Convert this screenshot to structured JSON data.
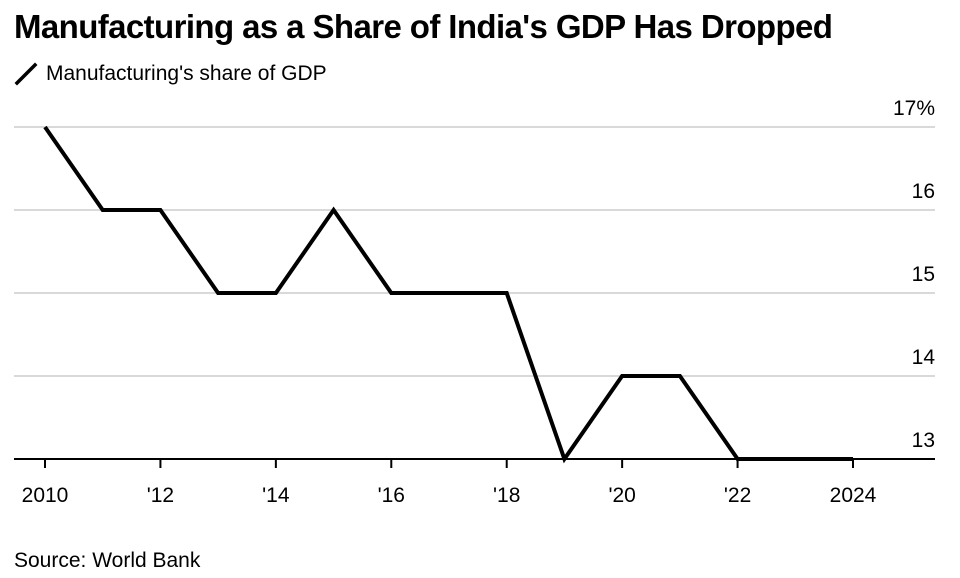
{
  "chart_data": {
    "type": "line",
    "title": "Manufacturing as a Share of India's GDP Has Dropped",
    "x": [
      2010,
      2011,
      2012,
      2013,
      2014,
      2015,
      2016,
      2017,
      2018,
      2019,
      2020,
      2021,
      2022,
      2023,
      2024
    ],
    "series": [
      {
        "name": "Manufacturing's share of GDP",
        "values": [
          17,
          16,
          16,
          15,
          15,
          16,
          15,
          15,
          15,
          13,
          14,
          14,
          13,
          13,
          13
        ],
        "color": "#000000"
      }
    ],
    "x_ticks": [
      {
        "value": 2010,
        "label": "2010"
      },
      {
        "value": 2012,
        "label": "'12"
      },
      {
        "value": 2014,
        "label": "'14"
      },
      {
        "value": 2016,
        "label": "'16"
      },
      {
        "value": 2018,
        "label": "'18"
      },
      {
        "value": 2020,
        "label": "'20"
      },
      {
        "value": 2022,
        "label": "'22"
      },
      {
        "value": 2024,
        "label": "2024"
      }
    ],
    "y_ticks": [
      {
        "value": 17,
        "label": "17%"
      },
      {
        "value": 16,
        "label": "16"
      },
      {
        "value": 15,
        "label": "15"
      },
      {
        "value": 14,
        "label": "14"
      },
      {
        "value": 13,
        "label": "13"
      }
    ],
    "xlim": [
      2010,
      2024
    ],
    "ylim": [
      13,
      17
    ],
    "grid": true,
    "grid_color": "#d9d9d9",
    "axis_color": "#000000",
    "legend_position": "top-left",
    "source": "Source: World Bank"
  }
}
